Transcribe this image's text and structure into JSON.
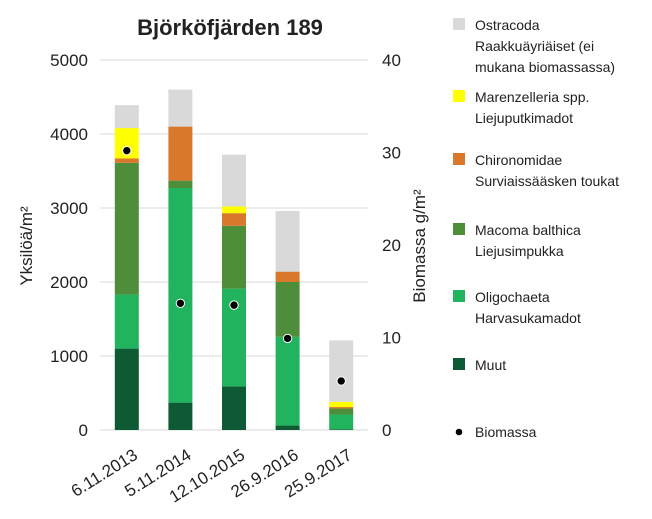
{
  "chart_data": {
    "type": "bar",
    "stacked": true,
    "title": "Björköfjärden 189",
    "ylabel": "Yksilöä/m²",
    "y2label": "Biomassa g/m²",
    "ylim": [
      0,
      5000
    ],
    "y2lim": [
      0,
      40
    ],
    "yticks": [
      "0",
      "1000",
      "2000",
      "3000",
      "4000",
      "5000"
    ],
    "y2ticks": [
      "0",
      "10",
      "20",
      "30",
      "40"
    ],
    "grid": true,
    "legend_position": "right",
    "categories": [
      "6.11.2013",
      "5.11.2014",
      "12.10.2015",
      "26.9.2016",
      "25.9.2017"
    ],
    "series": [
      {
        "key": "muut",
        "name": "Muut",
        "color": "#0d5a34",
        "values": [
          1100,
          370,
          590,
          60,
          10
        ]
      },
      {
        "key": "oligochaeta",
        "name": "Oligochaeta Harvasukamadot",
        "name_lines": [
          "Oligochaeta",
          "Harvasukamadot"
        ],
        "color": "#22b35e",
        "values": [
          730,
          2900,
          1320,
          1200,
          200
        ]
      },
      {
        "key": "macoma",
        "name": "Macoma balthica Liejusimpukka",
        "name_lines": [
          "Macoma balthica",
          "Liejusimpukka"
        ],
        "color": "#4e8e3a",
        "values": [
          1780,
          100,
          850,
          740,
          80
        ]
      },
      {
        "key": "chironomidae",
        "name": "Chironomidae Surviaissääsken toukat",
        "name_lines": [
          "Chironomidae",
          "Surviaissääsken toukat"
        ],
        "color": "#d9772b",
        "values": [
          60,
          730,
          170,
          140,
          20
        ]
      },
      {
        "key": "marenzelleria",
        "name": "Marenzelleria spp. Liejuputkimadot",
        "name_lines": [
          "Marenzelleria spp.",
          "Liejuputkimadot"
        ],
        "color": "#ffff00",
        "values": [
          410,
          0,
          90,
          0,
          70
        ]
      },
      {
        "key": "ostracoda",
        "name": "Ostracoda Raakkuäyriäiset (ei mukana biomassassa)",
        "name_lines": [
          "Ostracoda",
          "Raakkuäyriäiset (ei",
          "mukana biomassassa)"
        ],
        "color": "#d9d9d9",
        "values": [
          310,
          500,
          700,
          820,
          830
        ]
      }
    ],
    "biomass": {
      "name": "Biomassa",
      "color": "#000000",
      "values": [
        30.2,
        13.7,
        13.5,
        9.9,
        5.3
      ]
    }
  }
}
